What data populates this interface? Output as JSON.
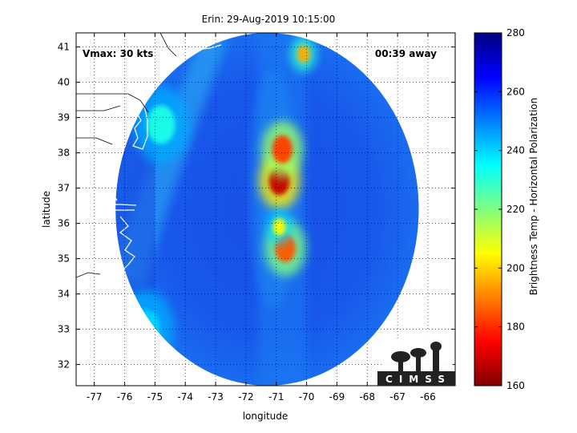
{
  "chart_data": {
    "type": "heatmap",
    "title": "Erin: 29-Aug-2019 10:15:00",
    "xlabel": "longitude",
    "ylabel": "latitude",
    "xlim": [
      -77.6,
      -65.1
    ],
    "ylim": [
      31.4,
      41.4
    ],
    "xticks": [
      -77,
      -76,
      -75,
      -74,
      -73,
      -72,
      -71,
      -70,
      -69,
      -68,
      -67,
      -66
    ],
    "yticks": [
      32,
      33,
      34,
      35,
      36,
      37,
      38,
      39,
      40,
      41
    ],
    "grid": true,
    "annotations": {
      "vmax": "Vmax: 30 kts",
      "timing": "00:39 away"
    },
    "colorbar": {
      "label": "Brightness Temp - Horizontal Polarization",
      "range": [
        160,
        280
      ],
      "ticks": [
        160,
        180,
        200,
        220,
        240,
        260,
        280
      ]
    },
    "swath": {
      "center_lon": -71.3,
      "center_lat": 36.4,
      "radius_deg": 5.0
    },
    "features": [
      {
        "lon": -70.9,
        "lat": 37.2,
        "value": 168
      },
      {
        "lon": -70.8,
        "lat": 38.1,
        "value": 182
      },
      {
        "lon": -70.7,
        "lat": 35.3,
        "value": 185
      },
      {
        "lon": -70.1,
        "lat": 40.8,
        "value": 195
      },
      {
        "lon": -70.9,
        "lat": 35.9,
        "value": 205
      },
      {
        "lon": -74.8,
        "lat": 38.8,
        "value": 232
      },
      {
        "lon": -75.3,
        "lat": 33.0,
        "value": 240
      }
    ],
    "logo": "CIMSS"
  }
}
